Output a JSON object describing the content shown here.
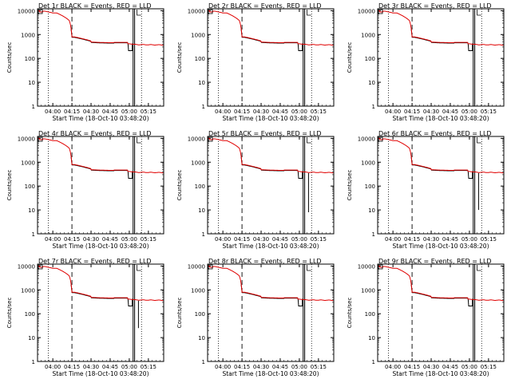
{
  "shared": {
    "xlabel": "Start Time (18-Oct-10 03:48:20)",
    "ylabel": "Counts/sec",
    "y_ticks": [
      1,
      10,
      100,
      1000,
      10000
    ],
    "y_tick_labels": [
      "1",
      "10",
      "100",
      "1000",
      "10000"
    ],
    "x_ticks": [
      0.0,
      0.25,
      0.5,
      0.75,
      1.0,
      1.25
    ],
    "x_tick_labels": [
      "04:00",
      "04:15",
      "04:30",
      "04:45",
      "05:00",
      "05:15"
    ],
    "y_scale": "log",
    "xlim": [
      -0.2,
      1.45
    ],
    "ylim": [
      1,
      12000
    ],
    "series_colors": {
      "events": "#000000",
      "lld": "#e00000"
    },
    "markers": {
      "dotted_a": -0.06,
      "dashed": 0.25,
      "solid_a": 1.05,
      "solid_b": 1.07,
      "dotted_b": 1.16
    }
  },
  "chart_data": [
    {
      "type": "line",
      "title": "Det 1r BLACK = Events, RED = LLD",
      "dip": null,
      "series": [
        {
          "name": "Events"
        },
        {
          "name": "LLD"
        }
      ]
    },
    {
      "type": "line",
      "title": "Det 2r BLACK = Events, RED = LLD",
      "dip": null,
      "series": [
        {
          "name": "Events"
        },
        {
          "name": "LLD"
        }
      ]
    },
    {
      "type": "line",
      "title": "Det 3r BLACK = Events, RED = LLD",
      "dip": null,
      "series": [
        {
          "name": "Events"
        },
        {
          "name": "LLD"
        }
      ]
    },
    {
      "type": "line",
      "title": "Det 4r BLACK = Events, RED = LLD",
      "dip": null,
      "series": [
        {
          "name": "Events"
        },
        {
          "name": "LLD"
        }
      ]
    },
    {
      "type": "line",
      "title": "Det 5r BLACK = Events, RED = LLD",
      "dip": 8,
      "series": [
        {
          "name": "Events"
        },
        {
          "name": "LLD"
        }
      ]
    },
    {
      "type": "line",
      "title": "Det 6r BLACK = Events, RED = LLD",
      "dip": 10,
      "series": [
        {
          "name": "Events"
        },
        {
          "name": "LLD"
        }
      ]
    },
    {
      "type": "line",
      "title": "Det 7r BLACK = Events, RED = LLD",
      "dip": 25,
      "series": [
        {
          "name": "Events"
        },
        {
          "name": "LLD"
        }
      ]
    },
    {
      "type": "line",
      "title": "Det 8r BLACK = Events, RED = LLD",
      "dip": null,
      "series": [
        {
          "name": "Events"
        },
        {
          "name": "LLD"
        }
      ]
    },
    {
      "type": "line",
      "title": "Det 9r BLACK = Events, RED = LLD",
      "dip": null,
      "series": [
        {
          "name": "Events"
        },
        {
          "name": "LLD"
        }
      ]
    }
  ]
}
